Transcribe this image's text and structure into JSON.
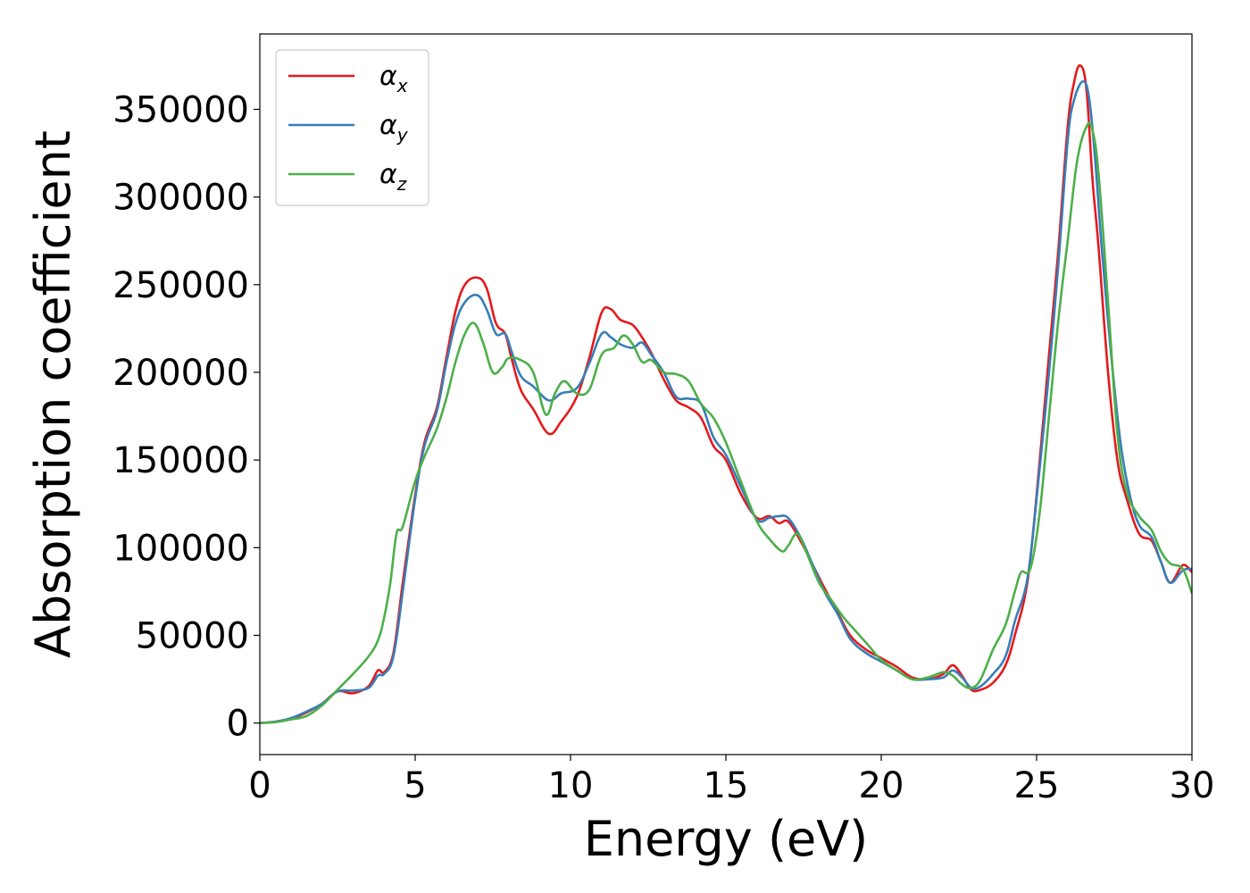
{
  "chart_data": {
    "type": "line",
    "xlabel": "Energy (eV)",
    "ylabel": "Absorption coefficient",
    "xlim": [
      0,
      30
    ],
    "ylim": [
      -18000,
      393000
    ],
    "xticks": [
      0,
      5,
      10,
      15,
      20,
      25,
      30
    ],
    "xtick_labels": [
      "0",
      "5",
      "10",
      "15",
      "20",
      "25",
      "30"
    ],
    "yticks": [
      0,
      50000,
      100000,
      150000,
      200000,
      250000,
      300000,
      350000
    ],
    "ytick_labels": [
      "0",
      "50000",
      "100000",
      "150000",
      "200000",
      "250000",
      "300000",
      "350000"
    ],
    "grid": false,
    "legend_position": "top-left",
    "series": [
      {
        "name": "α",
        "subscript": "x",
        "color": "#e41a1c",
        "x": [
          0,
          0.5,
          1,
          1.5,
          2,
          2.5,
          3,
          3.5,
          3.8,
          4.0,
          4.3,
          4.6,
          5,
          5.3,
          5.7,
          6,
          6.3,
          6.6,
          7.0,
          7.3,
          7.6,
          7.9,
          8.1,
          8.4,
          8.8,
          9.3,
          9.7,
          10.2,
          10.6,
          11.0,
          11.3,
          11.6,
          12.0,
          12.3,
          12.6,
          13.0,
          13.4,
          13.8,
          14.2,
          14.6,
          15.0,
          15.5,
          16.0,
          16.4,
          16.7,
          17.0,
          17.4,
          17.8,
          18.2,
          18.6,
          19.0,
          19.5,
          20.0,
          20.5,
          21.0,
          21.5,
          22.0,
          22.3,
          22.6,
          22.9,
          23.2,
          23.6,
          24.0,
          24.3,
          24.7,
          25.0,
          25.4,
          25.7,
          26.0,
          26.2,
          26.4,
          26.6,
          26.8,
          27.0,
          27.3,
          27.6,
          27.9,
          28.3,
          28.7,
          29.0,
          29.3,
          29.7,
          30.0
        ],
        "values": [
          0,
          800,
          2500,
          6000,
          11000,
          18000,
          17000,
          21000,
          30000,
          29000,
          40000,
          80000,
          130000,
          160000,
          180000,
          208000,
          235000,
          250000,
          254000,
          248000,
          228000,
          222000,
          208000,
          190000,
          179000,
          165000,
          172000,
          186000,
          208000,
          234000,
          236000,
          230000,
          227000,
          220000,
          211000,
          196000,
          184000,
          180000,
          174000,
          158000,
          150000,
          130000,
          117000,
          118000,
          114000,
          115000,
          104000,
          90000,
          76000,
          63000,
          50000,
          42000,
          37000,
          32000,
          26000,
          25000,
          28000,
          33000,
          27000,
          19000,
          19000,
          23000,
          33000,
          50000,
          80000,
          130000,
          210000,
          270000,
          340000,
          365000,
          375000,
          362000,
          310000,
          270000,
          200000,
          150000,
          128000,
          108000,
          104000,
          92000,
          80000,
          90000,
          86000
        ]
      },
      {
        "name": "α",
        "subscript": "y",
        "color": "#377eb8",
        "x": [
          0,
          0.5,
          1,
          1.5,
          2,
          2.5,
          3,
          3.5,
          3.8,
          4.0,
          4.3,
          4.6,
          5,
          5.3,
          5.7,
          6,
          6.3,
          6.6,
          7.0,
          7.3,
          7.6,
          7.9,
          8.1,
          8.4,
          8.8,
          9.3,
          9.7,
          10.2,
          10.6,
          11.0,
          11.3,
          11.6,
          12.0,
          12.3,
          12.6,
          13.0,
          13.4,
          13.8,
          14.2,
          14.6,
          15.0,
          15.5,
          16.0,
          16.4,
          16.7,
          17.0,
          17.4,
          17.8,
          18.2,
          18.6,
          19.0,
          19.5,
          20.0,
          20.5,
          21.0,
          21.5,
          22.0,
          22.3,
          22.6,
          22.9,
          23.2,
          23.6,
          24.0,
          24.3,
          24.7,
          25.0,
          25.4,
          25.7,
          26.0,
          26.2,
          26.5,
          26.7,
          26.9,
          27.1,
          27.4,
          27.7,
          28.0,
          28.3,
          28.7,
          29.0,
          29.3,
          29.7,
          30.0
        ],
        "values": [
          0,
          800,
          2800,
          6500,
          11000,
          18000,
          18500,
          20000,
          27000,
          28000,
          38000,
          75000,
          128000,
          158000,
          178000,
          205000,
          228000,
          240000,
          244000,
          236000,
          222000,
          222000,
          212000,
          198000,
          192000,
          184000,
          188000,
          191000,
          205000,
          222000,
          220000,
          216000,
          214000,
          217000,
          210000,
          200000,
          186000,
          185000,
          182000,
          163000,
          153000,
          134000,
          116000,
          117000,
          118000,
          117000,
          106000,
          90000,
          74000,
          62000,
          48000,
          40000,
          35000,
          30000,
          25000,
          25000,
          26000,
          30000,
          26000,
          20000,
          21000,
          28000,
          38000,
          58000,
          82000,
          128000,
          200000,
          262000,
          332000,
          355000,
          366000,
          355000,
          318000,
          270000,
          210000,
          160000,
          130000,
          113000,
          106000,
          92000,
          80000,
          87000,
          88000
        ]
      },
      {
        "name": "α",
        "subscript": "z",
        "color": "#4daf4a",
        "x": [
          0,
          0.5,
          1,
          1.5,
          2,
          2.5,
          3,
          3.5,
          3.8,
          4.0,
          4.2,
          4.4,
          4.6,
          5,
          5.3,
          5.7,
          6,
          6.3,
          6.6,
          6.9,
          7.2,
          7.5,
          7.8,
          8.0,
          8.4,
          8.8,
          9.2,
          9.5,
          9.8,
          10.2,
          10.6,
          11.0,
          11.4,
          11.7,
          12.0,
          12.3,
          12.6,
          13.0,
          13.4,
          13.8,
          14.2,
          14.6,
          15.0,
          15.5,
          16.0,
          16.4,
          16.8,
          17.0,
          17.3,
          17.6,
          18.0,
          18.4,
          18.8,
          19.2,
          19.6,
          20.0,
          20.5,
          21.0,
          21.5,
          22.0,
          22.3,
          22.6,
          22.9,
          23.2,
          23.6,
          24.0,
          24.3,
          24.5,
          24.8,
          25.1,
          25.4,
          25.7,
          26.0,
          26.3,
          26.6,
          26.8,
          27.0,
          27.3,
          27.6,
          27.9,
          28.3,
          28.7,
          29.0,
          29.3,
          29.7,
          30.0
        ],
        "values": [
          0,
          500,
          2000,
          4000,
          10000,
          19000,
          28000,
          38000,
          47000,
          60000,
          80000,
          108000,
          112000,
          138000,
          152000,
          168000,
          185000,
          206000,
          222000,
          228000,
          216000,
          200000,
          203000,
          208000,
          207000,
          200000,
          176000,
          188000,
          195000,
          188000,
          190000,
          210000,
          214000,
          221000,
          216000,
          206000,
          207000,
          200000,
          199000,
          195000,
          182000,
          174000,
          160000,
          137000,
          115000,
          105000,
          98000,
          101000,
          108000,
          97000,
          80000,
          70000,
          60000,
          52000,
          44000,
          36000,
          30000,
          25000,
          26000,
          29000,
          27000,
          22000,
          20000,
          25000,
          42000,
          56000,
          75000,
          86000,
          88000,
          120000,
          175000,
          230000,
          275000,
          320000,
          340000,
          338000,
          312000,
          240000,
          165000,
          132000,
          118000,
          110000,
          98000,
          91000,
          88000,
          74000
        ]
      }
    ]
  }
}
